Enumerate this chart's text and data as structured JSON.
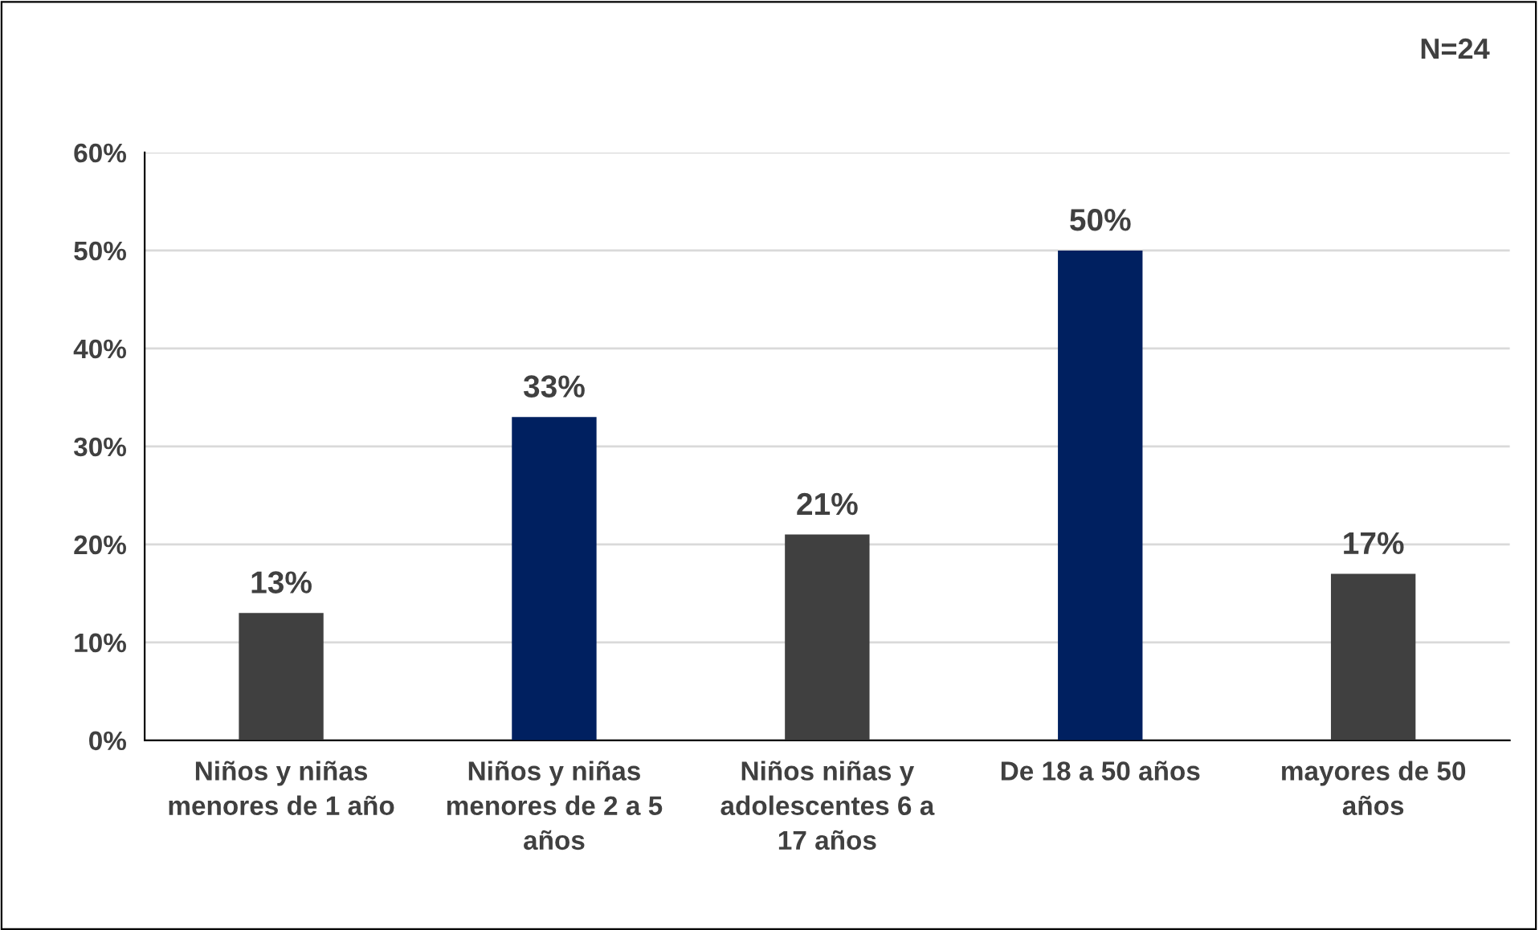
{
  "chart_data": {
    "type": "bar",
    "categories": [
      "Niños y niñas menores de 1 año",
      "Niños y niñas menores de 2 a 5 años",
      "Niños niñas y adolescentes 6 a 17 años",
      "De 18 a 50 años",
      "mayores de 50 años"
    ],
    "values": [
      13,
      33,
      21,
      50,
      17
    ],
    "colors": [
      "#404040",
      "#002060",
      "#404040",
      "#002060",
      "#404040"
    ],
    "value_labels": [
      "13%",
      "33%",
      "21%",
      "50%",
      "17%"
    ],
    "ylim": [
      0,
      60
    ],
    "yticks": [
      {
        "value": 0,
        "label": "0%"
      },
      {
        "value": 10,
        "label": "10%"
      },
      {
        "value": 20,
        "label": "20%"
      },
      {
        "value": 30,
        "label": "30%"
      },
      {
        "value": 40,
        "label": "40%"
      },
      {
        "value": 50,
        "label": "50%"
      },
      {
        "value": 60,
        "label": "60%"
      }
    ],
    "grid": "y",
    "annotations": [
      "N=24"
    ]
  }
}
